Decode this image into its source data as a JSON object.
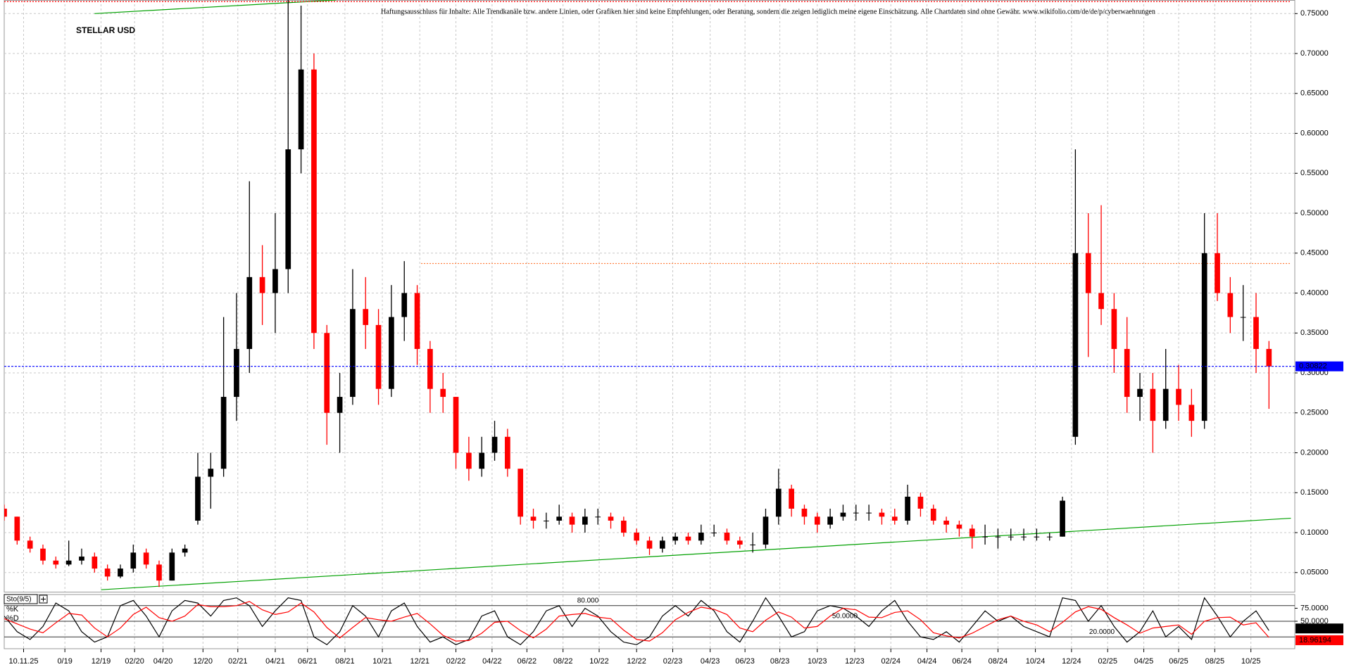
{
  "chart_data": [
    {
      "type": "candlestick",
      "title": "STELLAR USD",
      "subtitle": "Haftungsausschluss für Inhalte: Alle Trendkanäle bzw. andere Linien, oder Grafiken hier sind keine Empfehlungen, oder Beratung, sondern die zeigen lediglich meine eigene Einschätzung. Alle Chartdaten sind ohne Gewähr. www.wikifolio.com/de/de/p/cyberwaehrungen",
      "x": [
        0,
        1,
        2,
        3,
        4,
        5,
        6,
        7,
        8,
        9,
        10,
        11,
        12,
        13,
        14,
        15,
        16,
        17,
        18,
        19,
        20,
        21,
        22,
        23,
        24,
        25,
        26,
        27,
        28,
        29,
        30,
        31,
        32,
        33,
        34,
        35,
        36,
        37,
        38,
        39,
        40,
        41,
        42,
        43,
        44,
        45,
        46,
        47,
        48,
        49,
        50,
        51,
        52,
        53,
        54,
        55,
        56,
        57,
        58,
        59,
        60,
        61,
        62,
        63,
        64,
        65,
        66,
        67,
        68,
        69,
        70,
        71,
        72,
        73,
        74,
        75,
        76,
        77,
        78,
        79,
        80,
        81,
        82,
        83,
        84,
        85,
        86,
        87,
        88,
        89,
        90,
        91,
        92,
        93,
        94,
        95,
        96,
        97,
        98
      ],
      "open": [
        0.13,
        0.12,
        0.09,
        0.08,
        0.065,
        0.06,
        0.065,
        0.07,
        0.055,
        0.045,
        0.055,
        0.075,
        0.06,
        0.04,
        0.075,
        0.115,
        0.17,
        0.18,
        0.27,
        0.33,
        0.42,
        0.4,
        0.43,
        0.58,
        0.68,
        0.35,
        0.25,
        0.27,
        0.38,
        0.36,
        0.28,
        0.37,
        0.4,
        0.33,
        0.28,
        0.27,
        0.2,
        0.18,
        0.2,
        0.22,
        0.18,
        0.12,
        0.115,
        0.115,
        0.12,
        0.11,
        0.12,
        0.12,
        0.115,
        0.1,
        0.09,
        0.08,
        0.09,
        0.095,
        0.09,
        0.1,
        0.1,
        0.09,
        0.085,
        0.085,
        0.12,
        0.155,
        0.13,
        0.12,
        0.11,
        0.12,
        0.125,
        0.125,
        0.125,
        0.12,
        0.115,
        0.145,
        0.13,
        0.115,
        0.11,
        0.105,
        0.095,
        0.095,
        0.095,
        0.095,
        0.095,
        0.095,
        0.095,
        0.22,
        0.45,
        0.4,
        0.38,
        0.33,
        0.27,
        0.28,
        0.24,
        0.28,
        0.26,
        0.24,
        0.45,
        0.4,
        0.37,
        0.37,
        0.33
      ],
      "high": [
        0.135,
        0.12,
        0.095,
        0.085,
        0.07,
        0.09,
        0.08,
        0.075,
        0.06,
        0.06,
        0.085,
        0.08,
        0.065,
        0.08,
        0.085,
        0.2,
        0.2,
        0.37,
        0.4,
        0.54,
        0.46,
        0.5,
        0.77,
        0.76,
        0.7,
        0.36,
        0.3,
        0.43,
        0.42,
        0.38,
        0.41,
        0.44,
        0.41,
        0.34,
        0.3,
        0.27,
        0.22,
        0.22,
        0.24,
        0.23,
        0.18,
        0.13,
        0.125,
        0.135,
        0.125,
        0.13,
        0.13,
        0.125,
        0.12,
        0.105,
        0.095,
        0.095,
        0.1,
        0.1,
        0.11,
        0.11,
        0.105,
        0.095,
        0.1,
        0.13,
        0.18,
        0.16,
        0.135,
        0.125,
        0.13,
        0.135,
        0.135,
        0.135,
        0.13,
        0.13,
        0.16,
        0.15,
        0.135,
        0.12,
        0.115,
        0.11,
        0.11,
        0.105,
        0.105,
        0.105,
        0.105,
        0.1,
        0.145,
        0.58,
        0.5,
        0.51,
        0.4,
        0.37,
        0.3,
        0.3,
        0.33,
        0.31,
        0.28,
        0.5,
        0.5,
        0.42,
        0.41,
        0.4,
        0.34
      ],
      "low": [
        0.115,
        0.085,
        0.075,
        0.06,
        0.055,
        0.058,
        0.06,
        0.05,
        0.04,
        0.043,
        0.05,
        0.055,
        0.032,
        0.04,
        0.07,
        0.11,
        0.13,
        0.17,
        0.24,
        0.3,
        0.36,
        0.35,
        0.4,
        0.55,
        0.33,
        0.21,
        0.2,
        0.26,
        0.33,
        0.26,
        0.27,
        0.34,
        0.31,
        0.25,
        0.25,
        0.18,
        0.165,
        0.17,
        0.19,
        0.17,
        0.11,
        0.105,
        0.105,
        0.11,
        0.1,
        0.1,
        0.11,
        0.105,
        0.095,
        0.085,
        0.072,
        0.075,
        0.085,
        0.085,
        0.085,
        0.095,
        0.085,
        0.08,
        0.075,
        0.08,
        0.11,
        0.12,
        0.11,
        0.1,
        0.105,
        0.115,
        0.115,
        0.115,
        0.11,
        0.11,
        0.11,
        0.12,
        0.11,
        0.1,
        0.095,
        0.08,
        0.085,
        0.08,
        0.09,
        0.09,
        0.09,
        0.09,
        0.095,
        0.21,
        0.32,
        0.36,
        0.3,
        0.25,
        0.24,
        0.2,
        0.23,
        0.24,
        0.22,
        0.23,
        0.39,
        0.35,
        0.34,
        0.3,
        0.255
      ],
      "close": [
        0.12,
        0.09,
        0.08,
        0.065,
        0.06,
        0.065,
        0.07,
        0.055,
        0.045,
        0.055,
        0.075,
        0.06,
        0.04,
        0.075,
        0.08,
        0.17,
        0.18,
        0.27,
        0.33,
        0.42,
        0.4,
        0.43,
        0.58,
        0.68,
        0.35,
        0.25,
        0.27,
        0.38,
        0.36,
        0.28,
        0.37,
        0.4,
        0.33,
        0.28,
        0.27,
        0.2,
        0.18,
        0.2,
        0.22,
        0.18,
        0.12,
        0.115,
        0.115,
        0.12,
        0.11,
        0.12,
        0.12,
        0.115,
        0.1,
        0.09,
        0.08,
        0.09,
        0.095,
        0.09,
        0.1,
        0.1,
        0.09,
        0.085,
        0.085,
        0.12,
        0.155,
        0.13,
        0.12,
        0.11,
        0.12,
        0.125,
        0.125,
        0.125,
        0.12,
        0.115,
        0.145,
        0.13,
        0.115,
        0.11,
        0.105,
        0.095,
        0.095,
        0.095,
        0.095,
        0.095,
        0.095,
        0.095,
        0.14,
        0.45,
        0.4,
        0.38,
        0.33,
        0.27,
        0.28,
        0.24,
        0.28,
        0.26,
        0.24,
        0.45,
        0.4,
        0.37,
        0.37,
        0.33,
        0.30822
      ],
      "up_color": "#000000",
      "down_color": "#ff0000",
      "last_color": "#0000ff",
      "xlim": [
        0,
        100
      ],
      "ylim": [
        0.026,
        0.767
      ],
      "yticks": [
        {
          "value": 0.05,
          "label": "0.05000"
        },
        {
          "value": 0.1,
          "label": "0.10000"
        },
        {
          "value": 0.15,
          "label": "0.15000"
        },
        {
          "value": 0.2,
          "label": "0.20000"
        },
        {
          "value": 0.25,
          "label": "0.25000"
        },
        {
          "value": 0.3,
          "label": "0.30000"
        },
        {
          "value": 0.35,
          "label": "0.35000"
        },
        {
          "value": 0.4,
          "label": "0.40000"
        },
        {
          "value": 0.45,
          "label": "0.45000"
        },
        {
          "value": 0.5,
          "label": "0.50000"
        },
        {
          "value": 0.55,
          "label": "0.55000"
        },
        {
          "value": 0.6,
          "label": "0.60000"
        },
        {
          "value": 0.65,
          "label": "0.65000"
        },
        {
          "value": 0.7,
          "label": "0.70000"
        },
        {
          "value": 0.75,
          "label": "0.75000"
        }
      ],
      "xticks": [
        {
          "value": 1.5,
          "label": "10.11.25"
        },
        {
          "value": 4.7,
          "label": "0/19"
        },
        {
          "value": 7.5,
          "label": "12/19"
        },
        {
          "value": 10.1,
          "label": "02/20"
        },
        {
          "value": 12.3,
          "label": "04/20"
        },
        {
          "value": 15.4,
          "label": "12/20"
        },
        {
          "value": 18.1,
          "label": "02/21"
        },
        {
          "value": 21,
          "label": "04/21"
        },
        {
          "value": 23.5,
          "label": "06/21"
        },
        {
          "value": 26.4,
          "label": "08/21"
        },
        {
          "value": 29.3,
          "label": "10/21"
        },
        {
          "value": 32.2,
          "label": "12/21"
        },
        {
          "value": 35,
          "label": "02/22"
        },
        {
          "value": 37.8,
          "label": "04/22"
        },
        {
          "value": 40.5,
          "label": "06/22"
        },
        {
          "value": 43.3,
          "label": "08/22"
        },
        {
          "value": 46.1,
          "label": "10/22"
        },
        {
          "value": 49,
          "label": "12/22"
        },
        {
          "value": 51.8,
          "label": "02/23"
        },
        {
          "value": 54.7,
          "label": "04/23"
        },
        {
          "value": 57.4,
          "label": "06/23"
        },
        {
          "value": 60.1,
          "label": "08/23"
        },
        {
          "value": 63,
          "label": "10/23"
        },
        {
          "value": 65.9,
          "label": "12/23"
        },
        {
          "value": 68.7,
          "label": "02/24"
        },
        {
          "value": 71.5,
          "label": "04/24"
        },
        {
          "value": 74.2,
          "label": "06/24"
        },
        {
          "value": 77,
          "label": "08/24"
        },
        {
          "value": 79.9,
          "label": "10/24"
        },
        {
          "value": 82.7,
          "label": "12/24"
        },
        {
          "value": 85.5,
          "label": "02/25"
        },
        {
          "value": 88.3,
          "label": "04/25"
        },
        {
          "value": 91,
          "label": "06/25"
        },
        {
          "value": 93.8,
          "label": "08/25"
        },
        {
          "value": 96.6,
          "label": "10/25"
        }
      ],
      "grid": true,
      "lines": [
        {
          "color": "#00a000",
          "style": "solid",
          "x": [
            7,
            25.7
          ],
          "y": [
            0.75,
            0.767
          ]
        },
        {
          "color": "#00a000",
          "style": "solid",
          "x": [
            7.5,
            99.7
          ],
          "y": [
            0.0285,
            0.118
          ]
        },
        {
          "color": "#ff8040",
          "style": "dotted",
          "x": [
            32.3,
            99.7
          ],
          "y": [
            0.437,
            0.437
          ]
        },
        {
          "color": "#ff0000",
          "style": "dotted",
          "x": [
            0,
            99.7
          ],
          "y": [
            0.765,
            0.765
          ]
        }
      ]
    },
    {
      "type": "line",
      "title": "Sto(9/5)",
      "series": [
        {
          "name": "%K",
          "color": "#000000",
          "values": [
            60,
            30,
            15,
            40,
            85,
            70,
            30,
            10,
            20,
            80,
            90,
            60,
            20,
            70,
            90,
            85,
            60,
            90,
            95,
            80,
            40,
            70,
            95,
            90,
            20,
            5,
            30,
            80,
            60,
            20,
            70,
            85,
            40,
            10,
            20,
            5,
            15,
            60,
            70,
            20,
            5,
            30,
            70,
            80,
            40,
            75,
            60,
            30,
            10,
            5,
            20,
            60,
            80,
            60,
            90,
            70,
            30,
            10,
            50,
            95,
            60,
            20,
            30,
            70,
            80,
            75,
            60,
            40,
            70,
            90,
            50,
            20,
            15,
            30,
            10,
            40,
            70,
            50,
            60,
            40,
            30,
            20,
            95,
            90,
            50,
            80,
            40,
            10,
            30,
            70,
            20,
            40,
            15,
            95,
            60,
            20,
            50,
            70,
            32.12107
          ]
        },
        {
          "name": "%D",
          "color": "#ff0000",
          "values": [
            55,
            45,
            35,
            28,
            47,
            65,
            62,
            37,
            20,
            37,
            63,
            77,
            57,
            50,
            60,
            82,
            78,
            78,
            80,
            88,
            72,
            63,
            68,
            85,
            68,
            38,
            18,
            38,
            57,
            53,
            50,
            58,
            65,
            45,
            23,
            12,
            13,
            27,
            48,
            50,
            32,
            18,
            35,
            60,
            63,
            65,
            58,
            55,
            33,
            15,
            12,
            28,
            53,
            67,
            77,
            73,
            63,
            37,
            30,
            52,
            68,
            58,
            37,
            40,
            60,
            75,
            72,
            58,
            57,
            67,
            70,
            53,
            28,
            22,
            18,
            27,
            40,
            53,
            60,
            50,
            43,
            30,
            48,
            68,
            78,
            73,
            57,
            43,
            27,
            37,
            40,
            43,
            25,
            50,
            57,
            58,
            43,
            47,
            18.96194
          ]
        }
      ],
      "ylim": [
        0,
        100
      ],
      "yticks": [
        {
          "value": 50,
          "label": "50.0000"
        },
        {
          "value": 75,
          "label": "75.0000"
        }
      ],
      "levels": [
        {
          "value": 80,
          "label": "80.000"
        },
        {
          "value": 50,
          "label": "50.0000"
        },
        {
          "value": 20,
          "label": "20.0000"
        }
      ]
    }
  ]
}
